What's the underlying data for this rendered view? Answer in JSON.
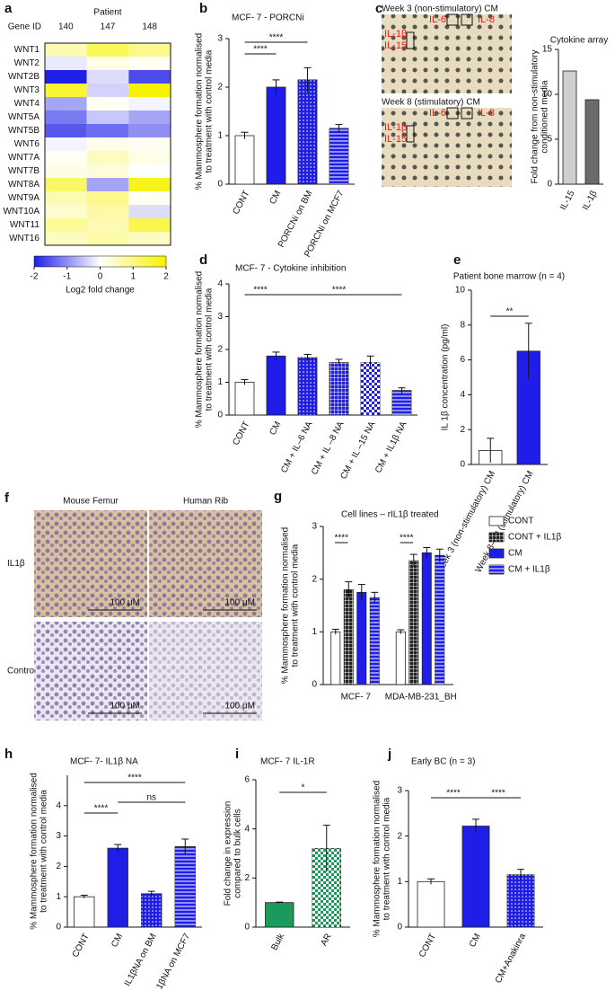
{
  "chart_data": [
    {
      "type": "heatmap",
      "panel": "a",
      "title": "Patient",
      "row_header": "Gene ID",
      "columns": [
        "140",
        "147",
        "148"
      ],
      "rows": [
        "WNT1",
        "WNT2",
        "WNT2B",
        "WNT3",
        "WNT4",
        "WNT5A",
        "WNT5B",
        "WNT6",
        "WNT7A",
        "WNT7B",
        "WNT8A",
        "WNT9A",
        "WNT10A",
        "WNT11",
        "WNT16"
      ],
      "values": [
        [
          0.6,
          1.3,
          0.9
        ],
        [
          -0.2,
          0.2,
          0.1
        ],
        [
          -2.0,
          -0.3,
          -1.6
        ],
        [
          1.6,
          -0.4,
          2.0
        ],
        [
          -0.8,
          0.1,
          -0.1
        ],
        [
          -1.2,
          -0.5,
          -0.8
        ],
        [
          -1.5,
          -1.3,
          -1.0
        ],
        [
          -0.1,
          0.2,
          0.1
        ],
        [
          0.1,
          0.5,
          0.2
        ],
        [
          0.2,
          0.3,
          0.0
        ],
        [
          1.2,
          -0.8,
          1.8
        ],
        [
          0.6,
          0.9,
          0.1
        ],
        [
          0.4,
          0.7,
          -0.3
        ],
        [
          0.8,
          0.6,
          1.4
        ],
        [
          0.5,
          0.7,
          0.5
        ]
      ],
      "clim": [
        -2,
        2
      ],
      "cticks": [
        -2,
        -1,
        0,
        1,
        2
      ],
      "colorbar_label": "Log2 fold change",
      "low_color": "#1f1fe6",
      "high_color": "#f7f200"
    },
    {
      "type": "bar",
      "panel": "b",
      "title": "MCF- 7 - PORCNi",
      "ylabel": [
        "% Mammosphere formation normalised",
        "to treatment with control media"
      ],
      "categories": [
        "CONT",
        "CM",
        "PORCNi on BM",
        "PORCNi on MCF7"
      ],
      "values": [
        1.0,
        2.0,
        2.15,
        1.15
      ],
      "errors": [
        0.07,
        0.15,
        0.25,
        0.08
      ],
      "colors": [
        "#ffffff",
        "#1e1ee8",
        "#1e1ee8",
        "#1e1ee8"
      ],
      "styles": [
        "solid",
        "solid",
        "dots",
        "stripes"
      ],
      "ylim": [
        0,
        3
      ],
      "yticks": [
        0,
        1,
        2,
        3
      ],
      "annotations": [
        {
          "text": "****",
          "between": [
            "CONT",
            "PORCNi on BM"
          ]
        },
        {
          "text": "****",
          "between": [
            "CONT",
            "CM"
          ]
        }
      ]
    },
    {
      "type": "bar",
      "panel": "c",
      "title": "Cytokine array",
      "ylabel": [
        "Fold change from non-stimulatory",
        "conditioned media"
      ],
      "categories": [
        "IL-15",
        "IL-1β"
      ],
      "values": [
        12.6,
        9.4
      ],
      "colors": [
        "#cfcfcf",
        "#6b6b6b"
      ],
      "styles": [
        "solid",
        "solid"
      ],
      "ylim": [
        0,
        15
      ],
      "yticks": [
        0,
        5,
        10,
        15
      ],
      "blots": [
        {
          "title": "Week 3 (non-stimulatory) CM",
          "labels": [
            "IL-1β",
            "IL-15",
            "IL-6",
            "IL-8"
          ]
        },
        {
          "title": "Week 8 (stimulatory) CM",
          "labels": [
            "IL-1β",
            "IL-15",
            "IL-6",
            "IL-8"
          ]
        }
      ]
    },
    {
      "type": "bar",
      "panel": "d",
      "title": "MCF- 7 - Cytokine inhibition",
      "ylabel": [
        "% Mammosphere formation normalised",
        "to treatment with control media"
      ],
      "categories": [
        "CONT",
        "CM",
        "CM + IL–6 NA",
        "CM + IL –8 NA",
        "CM + IL –15 NA",
        "CM + IL1β NA"
      ],
      "values": [
        1.0,
        1.8,
        1.75,
        1.6,
        1.6,
        0.75
      ],
      "errors": [
        0.08,
        0.12,
        0.1,
        0.1,
        0.2,
        0.08
      ],
      "colors": [
        "#ffffff",
        "#1e1ee8",
        "#1e1ee8",
        "#1e1ee8",
        "#1e1ee8",
        "#1e1ee8"
      ],
      "styles": [
        "solid",
        "solid",
        "dots",
        "grid",
        "checker",
        "stripes"
      ],
      "ylim": [
        0,
        4
      ],
      "yticks": [
        0,
        1,
        2,
        3,
        4
      ],
      "annotations": [
        {
          "text": "****",
          "between": [
            "CONT",
            "CM"
          ]
        },
        {
          "text": "****",
          "between": [
            "CM",
            "CM + IL1β NA"
          ]
        }
      ]
    },
    {
      "type": "bar",
      "panel": "e",
      "title": "Patient bone marrow (n = 4)",
      "ylabel": [
        "IL 1β concentration (pg/ml)"
      ],
      "categories": [
        "Week 3 (non-stimulatory) CM",
        "Week 8–12 (stimulatory) CM"
      ],
      "values": [
        0.8,
        6.5
      ],
      "errors": [
        0.7,
        1.6
      ],
      "colors": [
        "#ffffff",
        "#1e1ee8"
      ],
      "styles": [
        "solid",
        "solid"
      ],
      "ylim": [
        0,
        10
      ],
      "yticks": [
        0,
        2,
        4,
        6,
        8,
        10
      ],
      "annotations": [
        {
          "text": "**",
          "between": [
            "Week 3 (non-stimulatory) CM",
            "Week 8–12 (stimulatory) CM"
          ]
        }
      ]
    },
    {
      "type": "image",
      "panel": "f",
      "columns": [
        "Mouse Femur",
        "Human Rib"
      ],
      "rows": [
        "IL1β",
        "Control"
      ],
      "scale_bar": "100 μM"
    },
    {
      "type": "grouped_bar",
      "panel": "g",
      "title": "Cell lines – rIL1β treated",
      "ylabel": [
        "% Mammosphere formation normalised",
        "to treatment with control media"
      ],
      "categories": [
        "MCF- 7",
        "MDA-MB-231_BH"
      ],
      "series": [
        {
          "name": "CONT",
          "color": "#ffffff",
          "style": "solid",
          "values": [
            1.0,
            1.0
          ],
          "errors": [
            0.05,
            0.04
          ]
        },
        {
          "name": "CONT + IL1β",
          "color": "#222222",
          "style": "grid",
          "values": [
            1.8,
            2.35
          ],
          "errors": [
            0.15,
            0.12
          ]
        },
        {
          "name": "CM",
          "color": "#1e1ee8",
          "style": "solid",
          "values": [
            1.75,
            2.5
          ],
          "errors": [
            0.15,
            0.1
          ]
        },
        {
          "name": "CM + IL1β",
          "color": "#1e1ee8",
          "style": "stripes",
          "values": [
            1.65,
            2.45
          ],
          "errors": [
            0.1,
            0.12
          ]
        }
      ],
      "ylim": [
        0,
        3
      ],
      "yticks": [
        0,
        1,
        2,
        3
      ],
      "annotations": [
        {
          "text": "****",
          "group": "MCF- 7",
          "between": [
            "CONT",
            "CONT + IL1β"
          ]
        },
        {
          "text": "****",
          "group": "MDA-MB-231_BH",
          "between": [
            "CONT",
            "CONT + IL1β"
          ]
        }
      ]
    },
    {
      "type": "bar",
      "panel": "h",
      "title": "MCF- 7- IL1β NA",
      "ylabel": [
        "% Mammosphere formation normalised",
        "to treatment with control media"
      ],
      "categories": [
        "CONT",
        "CM",
        "IL1βNA on BM",
        "IL1βNA on MCF7"
      ],
      "values": [
        1.0,
        2.6,
        1.1,
        2.65
      ],
      "errors": [
        0.05,
        0.12,
        0.08,
        0.25
      ],
      "colors": [
        "#ffffff",
        "#1e1ee8",
        "#1e1ee8",
        "#1e1ee8"
      ],
      "styles": [
        "solid",
        "solid",
        "dots",
        "stripes"
      ],
      "ylim": [
        0,
        5
      ],
      "yticks": [
        0,
        1,
        2,
        3,
        4
      ],
      "annotations": [
        {
          "text": "****",
          "between": [
            "CONT",
            "CM"
          ]
        },
        {
          "text": "ns",
          "between": [
            "CM",
            "IL1βNA on MCF7"
          ]
        },
        {
          "text": "****",
          "between": [
            "CONT",
            "IL1βNA on MCF7"
          ]
        }
      ]
    },
    {
      "type": "bar",
      "panel": "i",
      "title": "MCF- 7 IL-1R",
      "ylabel": [
        "Fold change in expression",
        "compared to bulk cells"
      ],
      "categories": [
        "Bulk",
        "AR"
      ],
      "values": [
        1.0,
        3.2
      ],
      "errors": [
        0.02,
        0.95
      ],
      "colors": [
        "#1a9a5c",
        "#1a9a5c"
      ],
      "styles": [
        "solid",
        "checker"
      ],
      "ylim": [
        0,
        6
      ],
      "yticks": [
        0,
        2,
        4,
        6
      ],
      "annotations": [
        {
          "text": "*",
          "between": [
            "Bulk",
            "AR"
          ]
        }
      ]
    },
    {
      "type": "bar",
      "panel": "j",
      "title": "Early BC (n = 3)",
      "ylabel": [
        "% Mammosphere formation normalised",
        "to treatment with control media"
      ],
      "categories": [
        "CONT",
        "CM",
        "CM+Anakinra"
      ],
      "values": [
        1.0,
        2.22,
        1.15
      ],
      "errors": [
        0.06,
        0.15,
        0.12
      ],
      "colors": [
        "#ffffff",
        "#1e1ee8",
        "#1e1ee8"
      ],
      "styles": [
        "solid",
        "solid",
        "dots"
      ],
      "ylim": [
        0,
        3
      ],
      "yticks": [
        0,
        1,
        2,
        3
      ],
      "annotations": [
        {
          "text": "****",
          "between": [
            "CONT",
            "CM"
          ]
        },
        {
          "text": "****",
          "between": [
            "CM",
            "CM+Anakinra"
          ]
        }
      ]
    }
  ]
}
